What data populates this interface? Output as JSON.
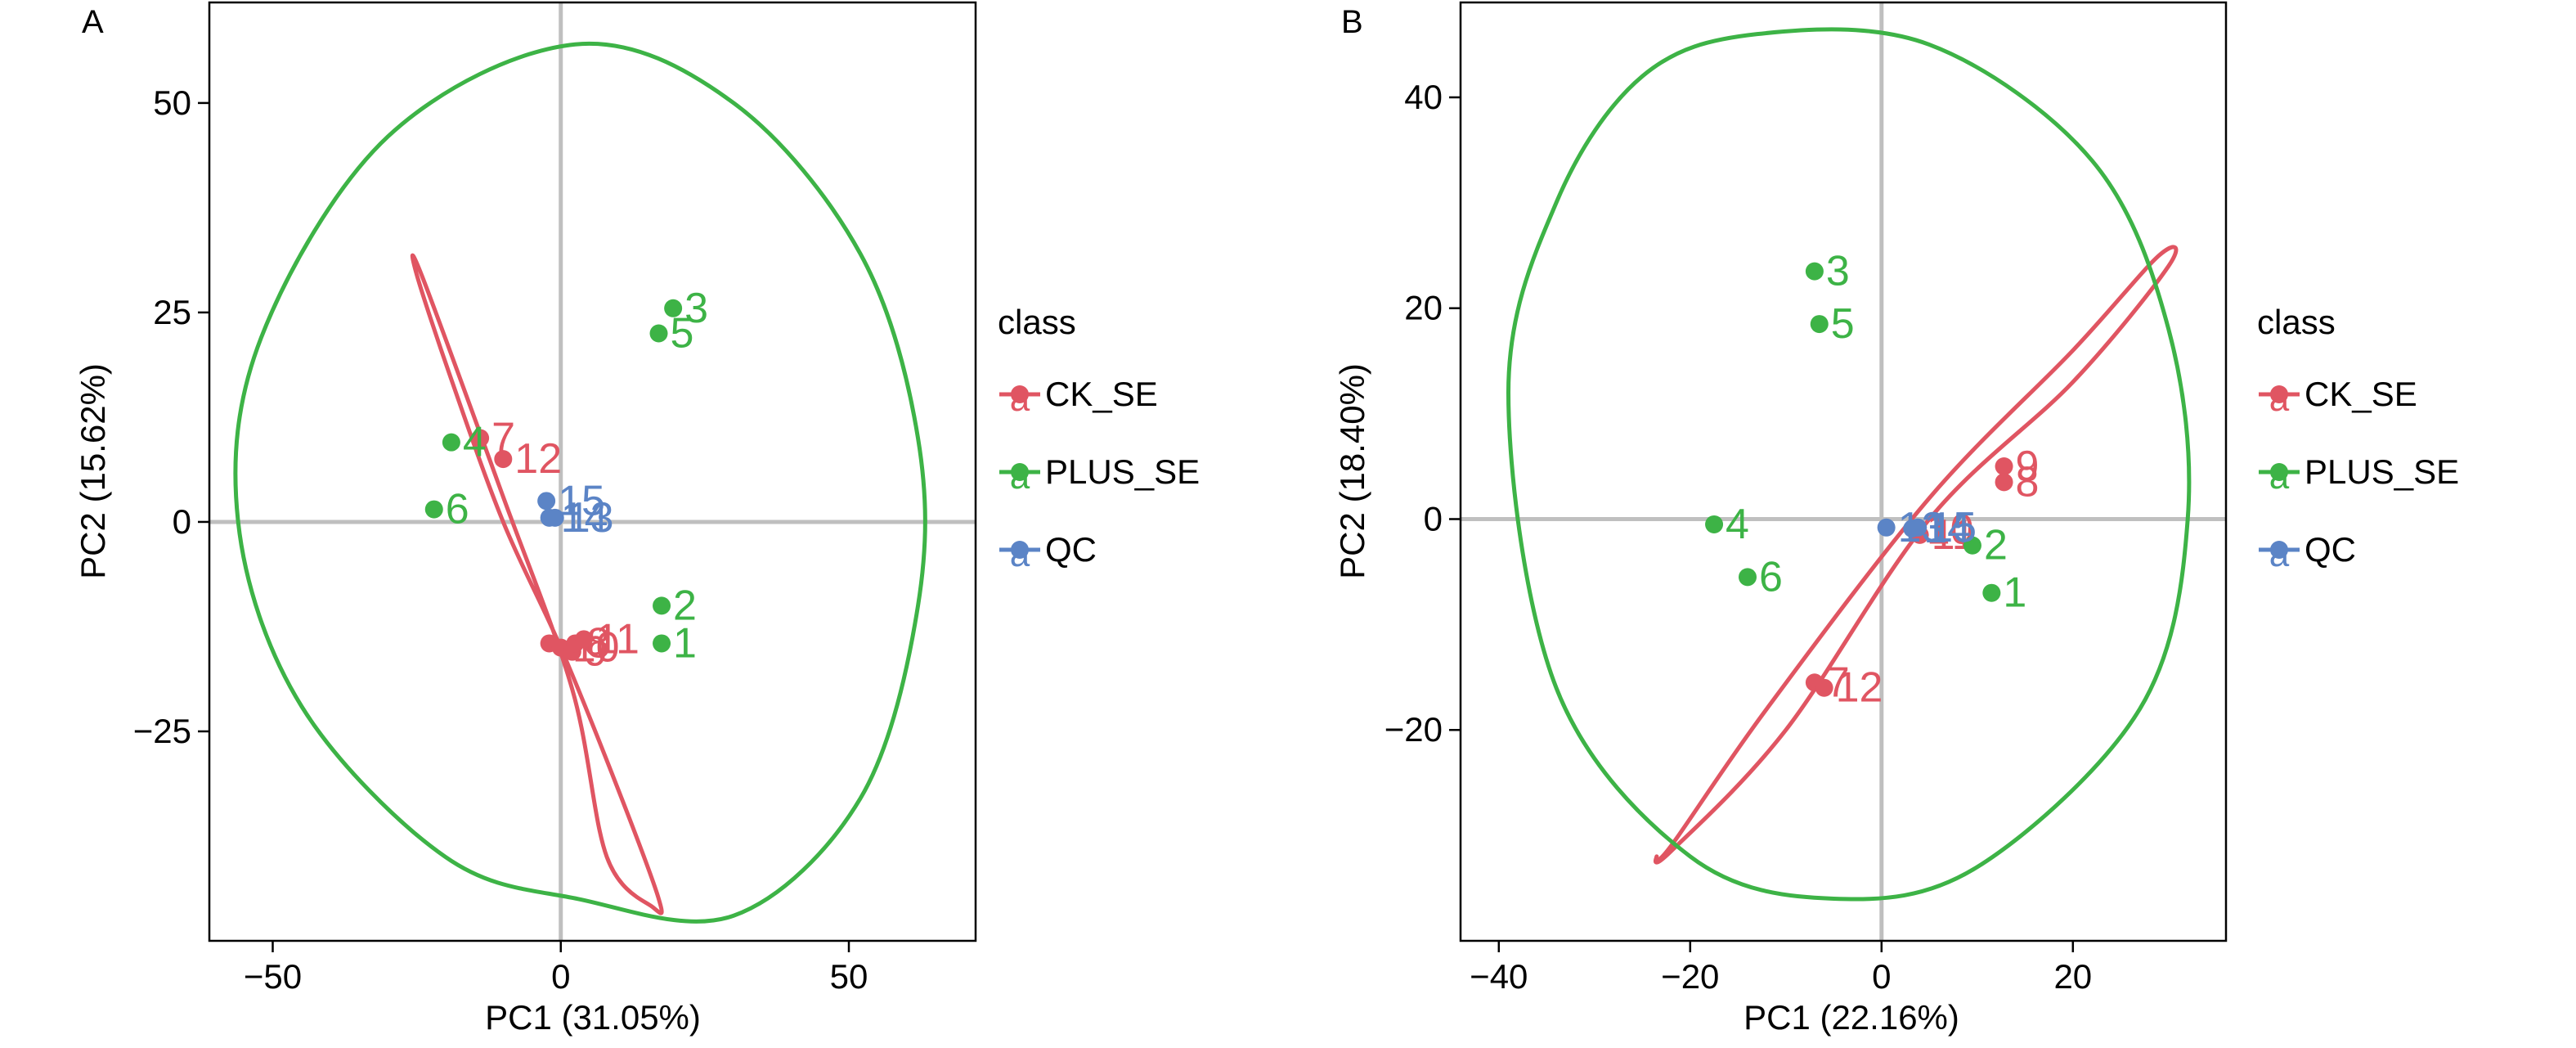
{
  "colors": {
    "CK_SE": "#e05562",
    "PLUS_SE": "#3db346",
    "QC": "#5b84c6",
    "axis_line": "#bfbfbf",
    "frame": "#000000"
  },
  "legend": {
    "title": "class",
    "placement": "right",
    "items": [
      {
        "label": "CK_SE",
        "key": "CK_SE",
        "glyph": "a"
      },
      {
        "label": "PLUS_SE",
        "key": "PLUS_SE",
        "glyph": "a"
      },
      {
        "label": "QC",
        "key": "QC",
        "glyph": "a"
      }
    ]
  },
  "chart_data": [
    {
      "panel_label": "A",
      "type": "scatter",
      "xlabel": "PC1 (31.05%)",
      "ylabel": "PC2 (15.62%)",
      "xlim": [
        -61,
        72
      ],
      "ylim": [
        -50,
        62
      ],
      "xticks": [
        -50,
        0,
        50
      ],
      "yticks": [
        -25,
        0,
        25,
        50
      ],
      "reference_lines": {
        "x": 0,
        "y": 0
      },
      "series": [
        {
          "name": "CK_SE",
          "points": [
            {
              "x": -14,
              "y": 10,
              "label": "7"
            },
            {
              "x": -10,
              "y": 7.5,
              "label": "12"
            },
            {
              "x": -2,
              "y": -14.5,
              "label": ""
            },
            {
              "x": 0,
              "y": -15,
              "label": "10"
            },
            {
              "x": 2,
              "y": -15.5,
              "label": "9"
            },
            {
              "x": 2.5,
              "y": -14.5,
              "label": "8"
            },
            {
              "x": 4,
              "y": -14,
              "label": "11"
            }
          ]
        },
        {
          "name": "PLUS_SE",
          "points": [
            {
              "x": 19.5,
              "y": 25.5,
              "label": "3"
            },
            {
              "x": 17,
              "y": 22.5,
              "label": "5"
            },
            {
              "x": -19,
              "y": 9.5,
              "label": "4"
            },
            {
              "x": -22,
              "y": 1.5,
              "label": "6"
            },
            {
              "x": 17.5,
              "y": -10,
              "label": "2"
            },
            {
              "x": 17.5,
              "y": -14.5,
              "label": "1"
            }
          ]
        },
        {
          "name": "QC",
          "points": [
            {
              "x": -2.5,
              "y": 2.5,
              "label": "15"
            },
            {
              "x": -2,
              "y": 0.5,
              "label": "14"
            },
            {
              "x": -1,
              "y": 0.5,
              "label": "13"
            }
          ]
        }
      ],
      "ellipses": [
        {
          "name": "CK_SE",
          "points": [
            [
              -24,
              29.2
            ],
            [
              -25,
              29.5
            ],
            [
              -19,
              17
            ],
            [
              -10,
              0
            ],
            [
              0,
              -15
            ],
            [
              10,
              -32
            ],
            [
              17,
              -45
            ],
            [
              16,
              -46
            ],
            [
              8,
              -40
            ],
            [
              2,
              -20
            ],
            [
              -10,
              3
            ],
            [
              -24,
              29.2
            ]
          ]
        },
        {
          "name": "PLUS_SE",
          "points": [
            [
              2.5,
              57
            ],
            [
              30,
              50
            ],
            [
              52,
              32
            ],
            [
              62,
              10
            ],
            [
              62,
              -10
            ],
            [
              52,
              -33
            ],
            [
              30,
              -47
            ],
            [
              3,
              -45
            ],
            [
              -20,
              -40
            ],
            [
              -45,
              -22
            ],
            [
              -56,
              0
            ],
            [
              -52,
              22
            ],
            [
              -30,
              46
            ],
            [
              2.5,
              57
            ]
          ]
        }
      ]
    },
    {
      "panel_label": "B",
      "type": "scatter",
      "xlabel": "PC1 (22.16%)",
      "ylabel": "PC2 (18.40%)",
      "xlim": [
        -44,
        36
      ],
      "ylim": [
        -40,
        49
      ],
      "xticks": [
        -40,
        -20,
        0,
        20
      ],
      "yticks": [
        -20,
        0,
        20,
        40
      ],
      "reference_lines": {
        "x": 0,
        "y": 0
      },
      "series": [
        {
          "name": "CK_SE",
          "points": [
            {
              "x": 12.8,
              "y": 5,
              "label": "9"
            },
            {
              "x": 12.8,
              "y": 3.5,
              "label": "8"
            },
            {
              "x": 3.5,
              "y": -1,
              "label": "10"
            },
            {
              "x": 4,
              "y": -1.5,
              "label": "11"
            },
            {
              "x": -7,
              "y": -15.5,
              "label": "7"
            },
            {
              "x": -6,
              "y": -16,
              "label": "12"
            }
          ]
        },
        {
          "name": "PLUS_SE",
          "points": [
            {
              "x": -7,
              "y": 23.5,
              "label": "3"
            },
            {
              "x": -6.5,
              "y": 18.5,
              "label": "5"
            },
            {
              "x": -17.5,
              "y": -0.5,
              "label": "4"
            },
            {
              "x": -14,
              "y": -5.5,
              "label": "6"
            },
            {
              "x": 9.5,
              "y": -2.5,
              "label": "2"
            },
            {
              "x": 11.5,
              "y": -7,
              "label": "1"
            }
          ]
        },
        {
          "name": "QC",
          "points": [
            {
              "x": 0.5,
              "y": -0.8,
              "label": "13"
            },
            {
              "x": 3.2,
              "y": -0.9,
              "label": "14"
            },
            {
              "x": 3.8,
              "y": -0.8,
              "label": "15"
            }
          ]
        }
      ],
      "ellipses": [
        {
          "name": "CK_SE",
          "points": [
            [
              30,
              24
            ],
            [
              29,
              25
            ],
            [
              20,
              16
            ],
            [
              5,
              2
            ],
            [
              -12,
              -18
            ],
            [
              -22,
              -31
            ],
            [
              -23.5,
              -32
            ],
            [
              -22,
              -31.5
            ],
            [
              -10,
              -20
            ],
            [
              5,
              0
            ],
            [
              20,
              13
            ],
            [
              30,
              24
            ]
          ]
        },
        {
          "name": "PLUS_SE",
          "points": [
            [
              -13,
              46
            ],
            [
              5,
              45
            ],
            [
              22,
              34
            ],
            [
              30,
              18
            ],
            [
              32,
              0
            ],
            [
              27,
              -18
            ],
            [
              10,
              -33
            ],
            [
              -5,
              -36
            ],
            [
              -20,
              -32
            ],
            [
              -34,
              -16
            ],
            [
              -39,
              12
            ],
            [
              -34,
              30
            ],
            [
              -25,
              42
            ],
            [
              -13,
              46
            ]
          ]
        }
      ]
    }
  ]
}
